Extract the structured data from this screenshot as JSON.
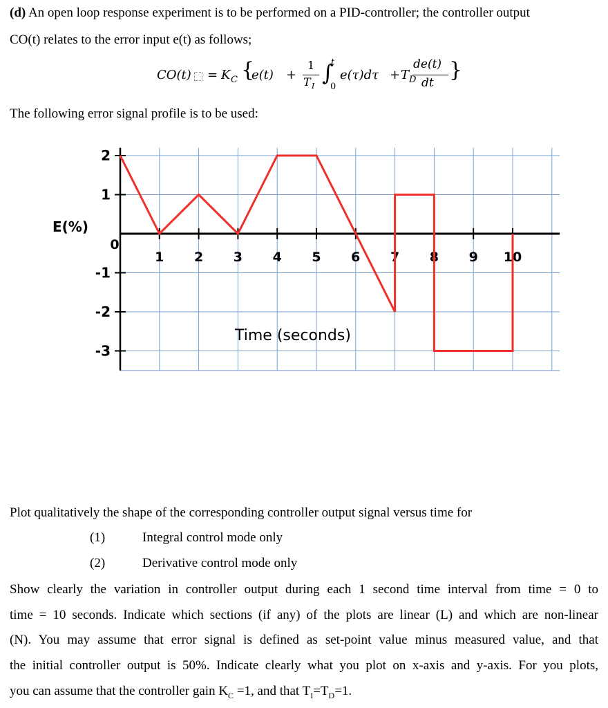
{
  "question": {
    "label": "(d)",
    "intro_line1": "An open loop response experiment is to be performed on a PID-controller; the controller output",
    "intro_line2": "CO(t) relates to the error input e(t) as follows;",
    "profile_intro": "The following error signal profile is to be used:"
  },
  "equation": {
    "lhs": "CO(t)",
    "equals": "=",
    "gain": "K",
    "gain_sub": "C",
    "brace_open": "{",
    "brace_close": "}",
    "term1": "e(t)",
    "plus1": "+",
    "frac1_num": "1",
    "frac1_den": "T",
    "frac1_den_sub": "I",
    "integral": "∫",
    "int_upper": "t",
    "int_lower": "0",
    "integrand": "e(τ)dτ",
    "plus2": "+",
    "deriv_coef": "T",
    "deriv_coef_sub": "D",
    "frac2_num": "de(t)",
    "frac2_den": "dt"
  },
  "chart_data": {
    "type": "line",
    "xlabel": "Time (seconds)",
    "ylabel": "E(%)",
    "xlim": [
      0,
      11.2
    ],
    "ylim": [
      -3.5,
      2.2
    ],
    "x_ticks": [
      "0",
      "1",
      "2",
      "3",
      "4",
      "5",
      "6",
      "7",
      "8",
      "9",
      "10"
    ],
    "y_ticks": [
      "2",
      "1",
      "-1",
      "-2",
      "-3"
    ],
    "grid": true,
    "line_color": "#f0302a",
    "series": [
      {
        "x": [
          0,
          1,
          2,
          3,
          4,
          5,
          6,
          7,
          7,
          8,
          8,
          10,
          10
        ],
        "y": [
          2,
          0,
          1,
          0,
          2,
          2,
          0,
          -2,
          1,
          1,
          -3,
          -3,
          0
        ]
      }
    ]
  },
  "tasks": {
    "intro": "Plot qualitatively the shape of the corresponding controller output signal versus time for",
    "items": [
      {
        "num": "(1)",
        "text": "Integral control mode only"
      },
      {
        "num": "(2)",
        "text": "Derivative control mode only"
      }
    ],
    "line1": "Show clearly the variation in controller output during each 1 second time interval from time = 0 to",
    "line2": "time = 10 seconds. Indicate which sections (if any) of the plots are linear (L) and which are non-linear",
    "line3": "(N). You may assume that error signal is defined as set-point value minus measured value, and that",
    "line4": "the initial controller output is 50%. Indicate clearly what you plot on x-axis and y-axis. For you plots,",
    "line5_a": "you can assume that the controller gain K",
    "line5_kc_sub": "C",
    "line5_b": " =1, and that T",
    "line5_ti_sub": "I",
    "line5_c": "=T",
    "line5_td_sub": "D",
    "line5_d": "=1."
  }
}
